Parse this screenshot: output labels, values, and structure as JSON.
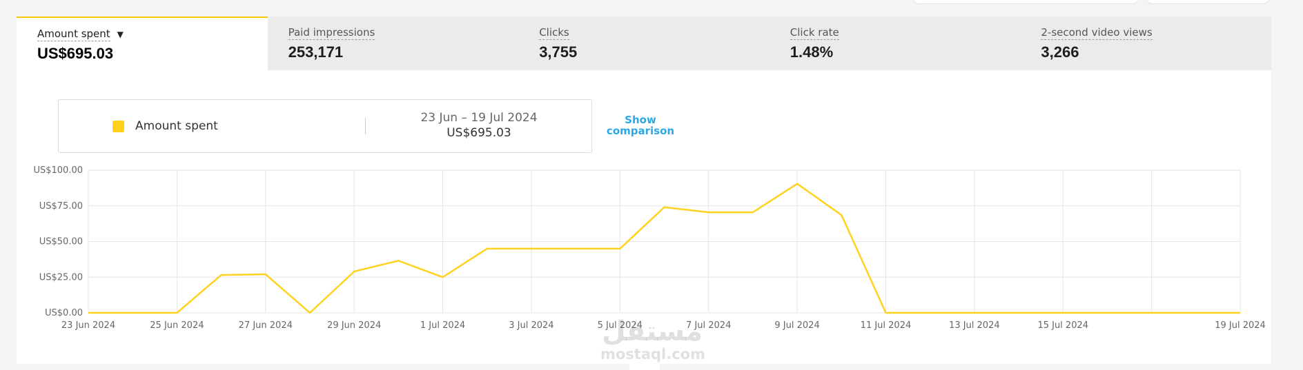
{
  "tabs": [
    {
      "label": "Amount spent",
      "value": "US$695.03",
      "active": true
    },
    {
      "label": "Paid impressions",
      "value": "253,171"
    },
    {
      "label": "Clicks",
      "value": "3,755"
    },
    {
      "label": "Click rate",
      "value": "1.48%"
    },
    {
      "label": "2-second video views",
      "value": "3,266"
    }
  ],
  "legend": {
    "series_name": "Amount spent",
    "date_range": "23 Jun – 19 Jul 2024",
    "total": "US$695.03",
    "show_comparison": "Show comparison",
    "color": "#ffd21e"
  },
  "watermark": {
    "line1": "مستقل",
    "line2": "mostaql.com"
  },
  "chart_data": {
    "type": "line",
    "title": "",
    "xlabel": "",
    "ylabel": "",
    "grid": true,
    "legend_position": "top-left",
    "ylim": [
      0,
      100
    ],
    "y_ticks": [
      "US$0.00",
      "US$25.00",
      "US$50.00",
      "US$75.00",
      "US$100.00"
    ],
    "x_tick_labels": [
      "23 Jun 2024",
      "25 Jun 2024",
      "27 Jun 2024",
      "29 Jun 2024",
      "1 Jul 2024",
      "3 Jul 2024",
      "5 Jul 2024",
      "7 Jul 2024",
      "9 Jul 2024",
      "11 Jul 2024",
      "13 Jul 2024",
      "15 Jul 2024",
      "19 Jul 2024"
    ],
    "x": [
      "23 Jun 2024",
      "24 Jun 2024",
      "25 Jun 2024",
      "26 Jun 2024",
      "27 Jun 2024",
      "28 Jun 2024",
      "29 Jun 2024",
      "30 Jun 2024",
      "1 Jul 2024",
      "2 Jul 2024",
      "3 Jul 2024",
      "4 Jul 2024",
      "5 Jul 2024",
      "6 Jul 2024",
      "7 Jul 2024",
      "8 Jul 2024",
      "9 Jul 2024",
      "10 Jul 2024",
      "11 Jul 2024",
      "12 Jul 2024",
      "13 Jul 2024",
      "14 Jul 2024",
      "15 Jul 2024",
      "16 Jul 2024",
      "17 Jul 2024",
      "18 Jul 2024",
      "19 Jul 2024"
    ],
    "series": [
      {
        "name": "Amount spent",
        "color": "#ffd21e",
        "values": [
          0,
          0,
          0,
          26.5,
          27,
          0,
          29,
          36.5,
          25,
          45,
          45,
          45,
          45,
          74,
          70.5,
          70.5,
          90.5,
          68.5,
          0,
          0,
          0,
          0,
          0,
          0,
          0,
          0,
          0
        ]
      }
    ]
  }
}
